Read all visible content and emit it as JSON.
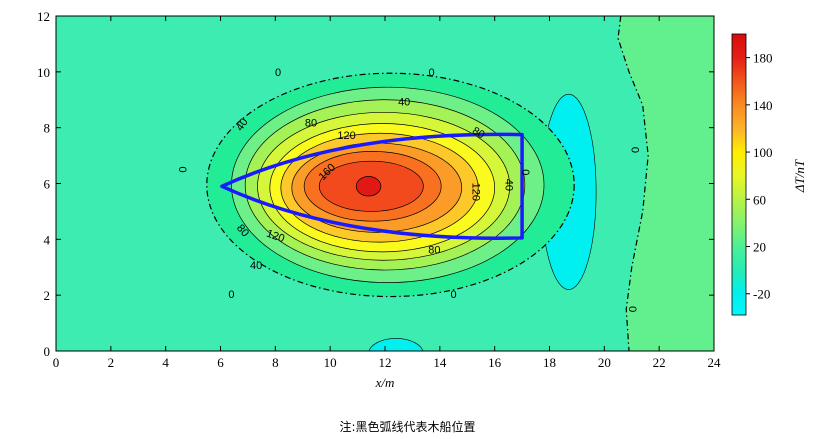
{
  "chart_data": {
    "type": "heatmap",
    "xlabel": "x/m",
    "ylabel": "",
    "xlim": [
      0,
      24
    ],
    "ylim": [
      0,
      12
    ],
    "xticks": [
      "0",
      "2",
      "4",
      "6",
      "8",
      "10",
      "12",
      "14",
      "16",
      "18",
      "20",
      "22",
      "24"
    ],
    "yticks": [
      "0",
      "2",
      "4",
      "6",
      "8",
      "10",
      "12"
    ],
    "anomaly": {
      "peak_center": [
        11.4,
        5.9
      ],
      "peak_value": 195,
      "regions": [
        {
          "level": 0,
          "cx": 12.2,
          "cy": 5.95,
          "rx": 6.7,
          "ry": 4.0,
          "color": "#22ec96"
        },
        {
          "level": 20,
          "cx": 12.1,
          "cy": 5.95,
          "rx": 5.7,
          "ry": 3.5,
          "color": "#6ef088"
        },
        {
          "level": 40,
          "cx": 12.0,
          "cy": 5.95,
          "rx": 5.1,
          "ry": 3.05,
          "color": "#a4f256"
        },
        {
          "level": 60,
          "cx": 11.95,
          "cy": 5.9,
          "rx": 4.6,
          "ry": 2.65,
          "color": "#d6f63a"
        },
        {
          "level": 80,
          "cx": 11.9,
          "cy": 5.85,
          "rx": 4.1,
          "ry": 2.3,
          "color": "#fafa1e"
        },
        {
          "level": 100,
          "cx": 11.8,
          "cy": 5.85,
          "rx": 3.6,
          "ry": 1.95,
          "color": "#fcc82a"
        },
        {
          "level": 120,
          "cx": 11.7,
          "cy": 5.85,
          "rx": 3.1,
          "ry": 1.6,
          "color": "#fb9b28"
        },
        {
          "level": 140,
          "cx": 11.55,
          "cy": 5.9,
          "rx": 2.5,
          "ry": 1.25,
          "color": "#f97020"
        },
        {
          "level": 160,
          "cx": 11.5,
          "cy": 5.9,
          "rx": 1.9,
          "ry": 0.9,
          "color": "#f24a1c"
        },
        {
          "level": 180,
          "cx": 11.4,
          "cy": 5.9,
          "rx": 0.45,
          "ry": 0.35,
          "color": "#e01914"
        }
      ],
      "negative_regions": [
        {
          "level": -20,
          "cx": 18.7,
          "cy": 5.7,
          "rx": 1.0,
          "ry": 3.5,
          "color": "#00f0f0"
        },
        {
          "level": -20,
          "cx": 12.4,
          "cy": -0.1,
          "rx": 1.0,
          "ry": 0.55,
          "color": "#00f0f0"
        }
      ],
      "zero_line_right": [
        [
          20.6,
          12.0
        ],
        [
          20.5,
          11.2
        ],
        [
          20.9,
          10.0
        ],
        [
          21.4,
          8.8
        ],
        [
          21.6,
          7.0
        ],
        [
          21.4,
          5.0
        ],
        [
          21.0,
          3.0
        ],
        [
          20.8,
          1.5
        ],
        [
          20.9,
          0.0
        ]
      ]
    },
    "contour_labels": [
      {
        "text": "0",
        "x": 8.1,
        "y": 9.95,
        "angle": 0
      },
      {
        "text": "0",
        "x": 13.7,
        "y": 9.95,
        "angle": 0
      },
      {
        "text": "0",
        "x": 4.6,
        "y": 6.5,
        "angle": 90
      },
      {
        "text": "0",
        "x": 6.4,
        "y": 2.0,
        "angle": 0
      },
      {
        "text": "0",
        "x": 14.5,
        "y": 2.0,
        "angle": 0
      },
      {
        "text": "0",
        "x": 21.1,
        "y": 7.2,
        "angle": 90
      },
      {
        "text": "0",
        "x": 21.0,
        "y": 1.5,
        "angle": 90
      },
      {
        "text": "0",
        "x": 17.1,
        "y": 6.4,
        "angle": 90
      },
      {
        "text": "40",
        "x": 12.7,
        "y": 8.9,
        "angle": 0
      },
      {
        "text": "40",
        "x": 6.8,
        "y": 8.1,
        "angle": -55
      },
      {
        "text": "40",
        "x": 7.3,
        "y": 3.05,
        "angle": 0
      },
      {
        "text": "40",
        "x": 16.5,
        "y": 5.95,
        "angle": 90
      },
      {
        "text": "80",
        "x": 9.3,
        "y": 8.15,
        "angle": 0
      },
      {
        "text": "80",
        "x": 6.8,
        "y": 4.3,
        "angle": 50
      },
      {
        "text": "80",
        "x": 13.8,
        "y": 3.6,
        "angle": 0
      },
      {
        "text": "80",
        "x": 15.4,
        "y": 7.8,
        "angle": 30
      },
      {
        "text": "120",
        "x": 10.6,
        "y": 7.7,
        "angle": 0
      },
      {
        "text": "120",
        "x": 8.0,
        "y": 4.1,
        "angle": 20
      },
      {
        "text": "120",
        "x": 15.3,
        "y": 5.7,
        "angle": 90
      },
      {
        "text": "160",
        "x": 9.9,
        "y": 6.4,
        "angle": -45
      }
    ],
    "boat_outline": {
      "color": "#1a1aff",
      "arc_tip": [
        6.05,
        5.9
      ],
      "top_point": [
        17.0,
        7.75
      ],
      "bottom_point": [
        17.0,
        4.05
      ],
      "top_control": [
        10.5,
        7.9
      ],
      "bottom_control": [
        10.5,
        3.9
      ]
    },
    "colorbar": {
      "label": "ΔT/nT",
      "range": [
        -38,
        200
      ],
      "ticks": [
        "-20",
        "20",
        "60",
        "100",
        "140",
        "180"
      ],
      "tick_values": [
        -20,
        20,
        60,
        100,
        140,
        180
      ],
      "stops": [
        {
          "v": -38,
          "c": "#00f8f8"
        },
        {
          "v": -20,
          "c": "#00f0f0"
        },
        {
          "v": 0,
          "c": "#28ecb4"
        },
        {
          "v": 20,
          "c": "#4cf096"
        },
        {
          "v": 40,
          "c": "#86f26c"
        },
        {
          "v": 60,
          "c": "#b8f246"
        },
        {
          "v": 80,
          "c": "#e8f626"
        },
        {
          "v": 100,
          "c": "#ffee00"
        },
        {
          "v": 120,
          "c": "#fcb22a"
        },
        {
          "v": 140,
          "c": "#f98a22"
        },
        {
          "v": 160,
          "c": "#f2561c"
        },
        {
          "v": 180,
          "c": "#e42016"
        },
        {
          "v": 200,
          "c": "#d80c0c"
        }
      ]
    },
    "background_color": "#3cecb0",
    "right_background_color": "#62f08e",
    "grid": false
  },
  "note": "注:黑色弧线代表木船位置"
}
